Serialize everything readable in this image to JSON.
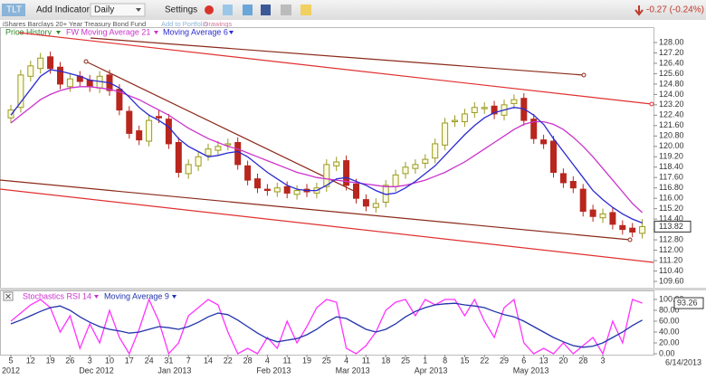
{
  "toolbar": {
    "symbol": "TLT",
    "add_indicator": "Add Indicator",
    "interval": "Daily",
    "settings": "Settings",
    "change": "-0.27 (-0.24%)"
  },
  "subheader": {
    "name": "iShares Barclays 20+ Year Treasury Bond Fund",
    "add_to_portfolio": "Add to Portfolio",
    "drawings": "Drawings"
  },
  "chart_data": [
    {
      "type": "candlestick",
      "price_label": "Price History",
      "categories": [
        "5",
        null,
        "12",
        null,
        "19",
        null,
        "26",
        null,
        "3",
        null,
        "10",
        null,
        "17",
        null,
        "24",
        null,
        "31",
        null,
        "7",
        null,
        "14",
        null,
        "22",
        null,
        "28",
        null,
        "4",
        null,
        "11",
        null,
        "19",
        null,
        "25",
        null,
        "4",
        null,
        "11",
        null,
        "18",
        null,
        "25",
        null,
        "1",
        null,
        "8",
        null,
        "15",
        null,
        "22",
        null,
        "29",
        null,
        "6",
        null,
        "13",
        null,
        "20",
        null,
        "28",
        null,
        "3",
        null,
        null,
        null,
        null
      ],
      "months": [
        "2012",
        null,
        null,
        null,
        null,
        null,
        null,
        null,
        "Dec 2012",
        null,
        null,
        null,
        null,
        null,
        null,
        null,
        "Jan 2013",
        null,
        null,
        null,
        null,
        null,
        null,
        null,
        null,
        null,
        "Feb 2013",
        null,
        null,
        null,
        null,
        null,
        null,
        null,
        "Mar 2013",
        null,
        null,
        null,
        null,
        null,
        null,
        null,
        "Apr 2013",
        null,
        null,
        null,
        null,
        null,
        null,
        null,
        null,
        null,
        "May 2013",
        null,
        null,
        null,
        null,
        null,
        null,
        null,
        null,
        null,
        null,
        null,
        null,
        null,
        null
      ],
      "last_date": "6/14/2013",
      "open": [
        122.2,
        123.0,
        125.4,
        126.0,
        126.9,
        126.1,
        124.6,
        125.4,
        125.1,
        124.5,
        125.5,
        124.4,
        122.7,
        121.2,
        120.4,
        122.3,
        122.1,
        120.3,
        117.9,
        118.5,
        119.3,
        119.7,
        120.1,
        120.3,
        118.5,
        117.5,
        116.7,
        116.5,
        116.9,
        116.3,
        116.7,
        116.4,
        116.9,
        118.5,
        118.9,
        117.1,
        115.9,
        115.3,
        115.7,
        116.9,
        117.9,
        118.3,
        118.7,
        119.1,
        120.1,
        121.9,
        121.9,
        122.6,
        122.9,
        123.1,
        122.4,
        123.3,
        123.7,
        122.1,
        120.5,
        120.4,
        117.9,
        117.3,
        116.7,
        115.1,
        114.5,
        114.9,
        113.9,
        113.7,
        113.3
      ],
      "high": [
        123.2,
        125.9,
        126.6,
        127.2,
        127.3,
        126.5,
        125.6,
        125.8,
        125.5,
        125.8,
        125.9,
        124.8,
        123.1,
        121.6,
        122.4,
        122.8,
        122.5,
        120.7,
        119.0,
        119.6,
        120.2,
        120.4,
        120.6,
        120.7,
        118.9,
        117.9,
        117.1,
        117.2,
        117.3,
        117.0,
        117.1,
        117.2,
        119.0,
        119.2,
        119.3,
        117.5,
        116.3,
        116.0,
        117.4,
        118.2,
        118.8,
        119.0,
        119.4,
        120.6,
        122.2,
        122.4,
        122.9,
        123.4,
        123.4,
        123.5,
        123.6,
        124.0,
        124.1,
        122.5,
        120.9,
        120.8,
        118.3,
        117.7,
        117.1,
        115.5,
        115.2,
        115.3,
        114.3,
        114.1,
        114.4
      ],
      "low": [
        121.8,
        122.6,
        125.0,
        125.6,
        125.6,
        124.4,
        124.2,
        124.6,
        124.2,
        124.1,
        123.9,
        122.4,
        120.6,
        120.1,
        120.0,
        121.8,
        119.8,
        117.6,
        117.5,
        118.1,
        118.9,
        119.3,
        119.7,
        118.2,
        117.0,
        116.4,
        116.2,
        116.1,
        116.0,
        115.9,
        116.1,
        116.0,
        116.5,
        118.1,
        116.6,
        115.6,
        115.0,
        114.9,
        115.3,
        116.5,
        117.5,
        117.9,
        118.3,
        118.7,
        119.7,
        121.5,
        121.5,
        122.2,
        122.5,
        122.1,
        122.0,
        122.9,
        121.6,
        120.2,
        119.8,
        117.6,
        116.8,
        116.4,
        114.6,
        114.2,
        114.1,
        113.6,
        113.2,
        113.0,
        112.9
      ],
      "close": [
        122.8,
        125.5,
        126.2,
        126.8,
        126.0,
        124.8,
        125.2,
        125.0,
        124.6,
        125.4,
        124.3,
        122.8,
        121.0,
        120.5,
        122.0,
        122.2,
        120.2,
        118.0,
        118.6,
        119.2,
        119.8,
        120.0,
        120.2,
        118.6,
        117.4,
        116.8,
        116.6,
        116.8,
        116.4,
        116.6,
        116.5,
        116.8,
        118.6,
        118.8,
        117.0,
        116.0,
        115.4,
        115.6,
        117.0,
        117.8,
        118.4,
        118.6,
        119.0,
        120.2,
        121.8,
        122.0,
        122.5,
        123.0,
        123.0,
        122.5,
        123.2,
        123.6,
        122.0,
        120.6,
        120.2,
        118.0,
        117.2,
        116.8,
        115.0,
        114.6,
        114.8,
        114.0,
        113.6,
        113.4,
        113.82
      ],
      "up_color": "#9a9a22",
      "down_color": "#b8261e",
      "series": [
        {
          "name": "FW Moving Average 21",
          "color": "#cc33cc",
          "values": [
            121.8,
            122.4,
            123.0,
            123.6,
            124.0,
            124.3,
            124.5,
            124.6,
            124.6,
            124.5,
            124.4,
            124.2,
            123.9,
            123.6,
            123.2,
            122.8,
            122.4,
            121.9,
            121.4,
            121.0,
            120.6,
            120.3,
            120.0,
            119.8,
            119.5,
            119.2,
            118.9,
            118.6,
            118.3,
            118.0,
            117.8,
            117.6,
            117.5,
            117.4,
            117.3,
            117.2,
            117.1,
            117.0,
            116.9,
            116.9,
            117.0,
            117.2,
            117.4,
            117.7,
            118.0,
            118.4,
            118.8,
            119.3,
            119.8,
            120.3,
            120.8,
            121.3,
            121.7,
            121.9,
            121.9,
            121.7,
            121.3,
            120.7,
            120.0,
            119.2,
            118.3,
            117.4,
            116.5,
            115.6,
            114.9
          ]
        },
        {
          "name": "Moving Average 6",
          "color": "#2a2ad0",
          "values": [
            122.4,
            123.4,
            124.4,
            125.4,
            125.9,
            125.8,
            125.6,
            125.4,
            125.1,
            125.0,
            124.9,
            124.5,
            123.8,
            123.0,
            122.4,
            122.0,
            121.5,
            120.6,
            120.0,
            119.6,
            119.2,
            119.3,
            119.5,
            119.6,
            119.2,
            118.6,
            118.0,
            117.5,
            117.0,
            116.7,
            116.6,
            116.6,
            117.0,
            117.5,
            117.6,
            117.3,
            117.0,
            116.6,
            116.3,
            116.4,
            116.8,
            117.3,
            117.9,
            118.5,
            119.3,
            120.1,
            120.9,
            121.6,
            122.2,
            122.6,
            122.8,
            123.0,
            122.9,
            122.4,
            121.7,
            120.6,
            119.6,
            118.6,
            117.6,
            116.6,
            115.9,
            115.3,
            114.8,
            114.4,
            114.1
          ]
        }
      ],
      "ylim": [
        109.6,
        128
      ],
      "yticks": [
        {
          "value": 128,
          "label": "128.00"
        },
        {
          "value": 127.2,
          "label": "127.20"
        },
        {
          "value": 126.4,
          "label": "126.40"
        },
        {
          "value": 125.6,
          "label": "125.60"
        },
        {
          "value": 124.8,
          "label": "124.80"
        },
        {
          "value": 124,
          "label": "124.00"
        },
        {
          "value": 123.2,
          "label": "123.20"
        },
        {
          "value": 122.4,
          "label": "122.40"
        },
        {
          "value": 121.6,
          "label": "121.60"
        },
        {
          "value": 120.8,
          "label": "120.80"
        },
        {
          "value": 120,
          "label": "120.00"
        },
        {
          "value": 119.2,
          "label": "119.20"
        },
        {
          "value": 118.4,
          "label": "118.40"
        },
        {
          "value": 117.6,
          "label": "117.60"
        },
        {
          "value": 116.8,
          "label": "116.80"
        },
        {
          "value": 116,
          "label": "116.00"
        },
        {
          "value": 115.2,
          "label": "115.20"
        },
        {
          "value": 114.4,
          "label": "114.40"
        },
        {
          "value": 113.6,
          "label": "113.60"
        },
        {
          "value": 112.8,
          "label": "112.80"
        },
        {
          "value": 112,
          "label": "112.00"
        },
        {
          "value": 111.2,
          "label": "111.20"
        },
        {
          "value": 110.4,
          "label": "110.40"
        },
        {
          "value": 109.6,
          "label": "109.60"
        }
      ]
    },
    {
      "type": "line",
      "series": [
        {
          "name": "Stochastics RSI 14",
          "color": "#ff33ff",
          "values": [
            60,
            75,
            90,
            100,
            85,
            40,
            70,
            10,
            55,
            20,
            80,
            30,
            0,
            45,
            100,
            60,
            0,
            20,
            70,
            85,
            100,
            90,
            40,
            0,
            10,
            0,
            30,
            10,
            60,
            20,
            50,
            85,
            100,
            95,
            10,
            0,
            15,
            40,
            80,
            95,
            100,
            70,
            100,
            90,
            100,
            100,
            70,
            100,
            60,
            30,
            85,
            100,
            20,
            0,
            10,
            0,
            20,
            0,
            15,
            30,
            0,
            60,
            20,
            100,
            93.26
          ]
        },
        {
          "name": "Moving Average 9",
          "color": "#2233aa",
          "values": [
            55,
            62,
            70,
            78,
            85,
            88,
            80,
            68,
            58,
            50,
            45,
            42,
            38,
            40,
            45,
            50,
            48,
            45,
            50,
            58,
            68,
            75,
            72,
            62,
            50,
            38,
            28,
            22,
            25,
            28,
            35,
            45,
            58,
            68,
            65,
            55,
            45,
            40,
            45,
            55,
            68,
            78,
            85,
            90,
            92,
            93,
            90,
            88,
            85,
            78,
            72,
            68,
            60,
            50,
            40,
            30,
            22,
            15,
            12,
            14,
            20,
            30,
            40,
            52,
            62
          ]
        }
      ],
      "ylim": [
        0,
        100
      ],
      "yticks": [
        {
          "value": 100,
          "label": "100.00"
        },
        {
          "value": 80,
          "label": "80.00"
        },
        {
          "value": 60,
          "label": "60.00"
        },
        {
          "value": 40,
          "label": "40.00"
        },
        {
          "value": 20,
          "label": "20.00"
        },
        {
          "value": 0,
          "label": "0.00"
        }
      ]
    }
  ]
}
